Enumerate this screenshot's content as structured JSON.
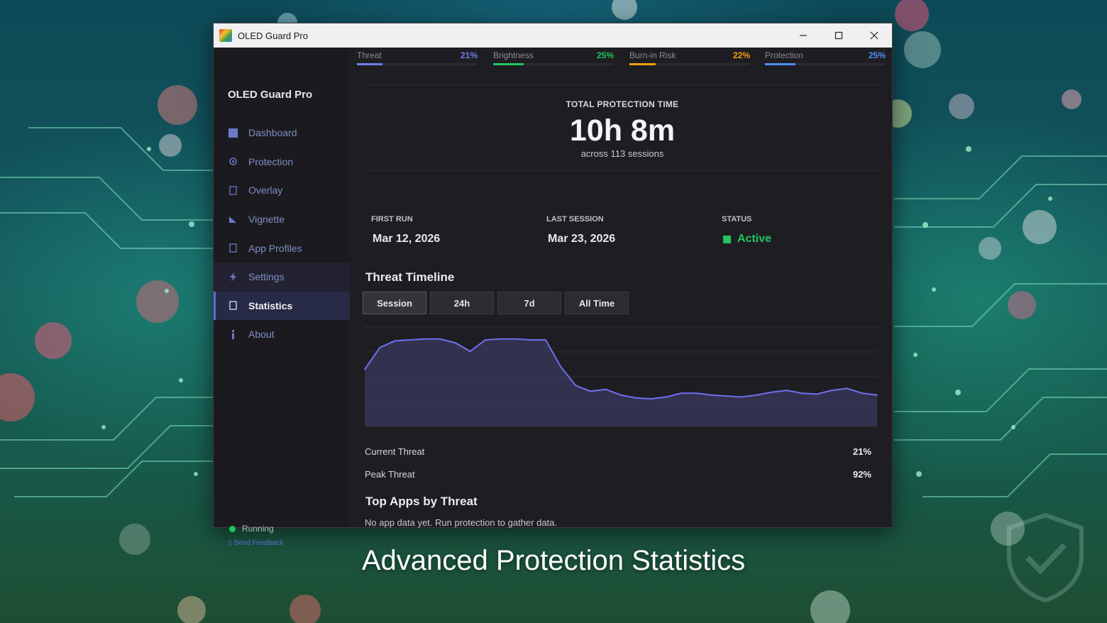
{
  "window": {
    "title": "OLED Guard Pro"
  },
  "sidebar": {
    "brand": "OLED Guard Pro",
    "items": [
      {
        "label": "Dashboard",
        "icon": "dashboard-icon"
      },
      {
        "label": "Protection",
        "icon": "gear-icon"
      },
      {
        "label": "Overlay",
        "icon": "overlay-icon"
      },
      {
        "label": "Vignette",
        "icon": "vignette-icon"
      },
      {
        "label": "App Profiles",
        "icon": "app-profiles-icon"
      },
      {
        "label": "Settings",
        "icon": "lightning-icon"
      },
      {
        "label": "Statistics",
        "icon": "statistics-icon",
        "active": true
      },
      {
        "label": "About",
        "icon": "info-icon"
      }
    ],
    "status": "Running",
    "feedback": "Send Feedback"
  },
  "metrics": [
    {
      "label": "Threat",
      "value": "21%",
      "fraction": 0.21,
      "color": "#6f7df0"
    },
    {
      "label": "Brightness",
      "value": "25%",
      "fraction": 0.25,
      "color": "#22c55e"
    },
    {
      "label": "Burn-in Risk",
      "value": "22%",
      "fraction": 0.22,
      "color": "#f59e0b"
    },
    {
      "label": "Protection",
      "value": "25%",
      "fraction": 0.25,
      "color": "#4f8ef7"
    }
  ],
  "summary": {
    "caption": "TOTAL PROTECTION TIME",
    "total": "10h 8m",
    "sessions": "across 113 sessions",
    "first_run_label": "FIRST RUN",
    "first_run": "Mar 12, 2026",
    "last_session_label": "LAST SESSION",
    "last_session": "Mar 23, 2026",
    "status_label": "STATUS",
    "status": "Active"
  },
  "timeline": {
    "title": "Threat Timeline",
    "tabs": [
      "Session",
      "24h",
      "7d",
      "All Time"
    ],
    "selected_tab": "Session"
  },
  "chart_data": {
    "type": "area",
    "ylim": [
      0,
      100
    ],
    "grid": true,
    "color": "#6f6ff0",
    "values": [
      60,
      83,
      90,
      91,
      92,
      92,
      88,
      79,
      91,
      92,
      92,
      91,
      91,
      63,
      43,
      37,
      39,
      33,
      30,
      29,
      31,
      35,
      35,
      33,
      32,
      31,
      33,
      36,
      38,
      35,
      34,
      38,
      40,
      35,
      33
    ]
  },
  "stats": {
    "current_threat_label": "Current Threat",
    "current_threat": "21%",
    "peak_threat_label": "Peak Threat",
    "peak_threat": "92%"
  },
  "top_apps": {
    "title": "Top Apps by Threat",
    "empty": "No app data yet. Run protection to gather data."
  },
  "caption": "Advanced Protection Statistics"
}
